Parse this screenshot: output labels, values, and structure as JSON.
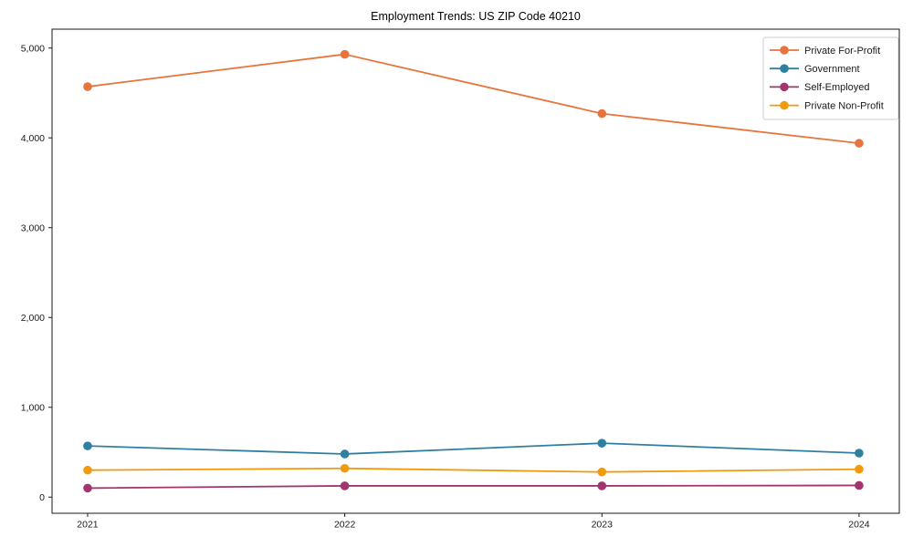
{
  "figure": {
    "background": "#ffffff"
  },
  "chart_data": {
    "type": "line",
    "title": "Employment Trends: US ZIP Code 40210",
    "x_labels": [
      "2021",
      "2022",
      "2023",
      "2024"
    ],
    "series": [
      {
        "name": "Private For-Profit",
        "color": "#e8743b",
        "values": [
          4570,
          4930,
          4270,
          3940
        ]
      },
      {
        "name": "Government",
        "color": "#2d80a1",
        "values": [
          570,
          480,
          600,
          490
        ]
      },
      {
        "name": "Self-Employed",
        "color": "#a2356e",
        "values": [
          100,
          125,
          125,
          130
        ]
      },
      {
        "name": "Private Non-Profit",
        "color": "#f09a0e",
        "values": [
          300,
          320,
          280,
          310
        ]
      }
    ],
    "xlabel": "",
    "ylabel": "",
    "yticks": [
      0,
      1000,
      2000,
      3000,
      4000,
      5000
    ],
    "ytick_labels": [
      "0",
      "1,000",
      "2,000",
      "3,000",
      "4,000",
      "5,000"
    ],
    "ylim": [
      -180,
      5210
    ],
    "grid": false,
    "legend_position": "upper right",
    "marker": "circle",
    "axis_color": "#1a1a1a",
    "text_color": "#1a1a1a",
    "legend_border_color": "#cccccc"
  }
}
